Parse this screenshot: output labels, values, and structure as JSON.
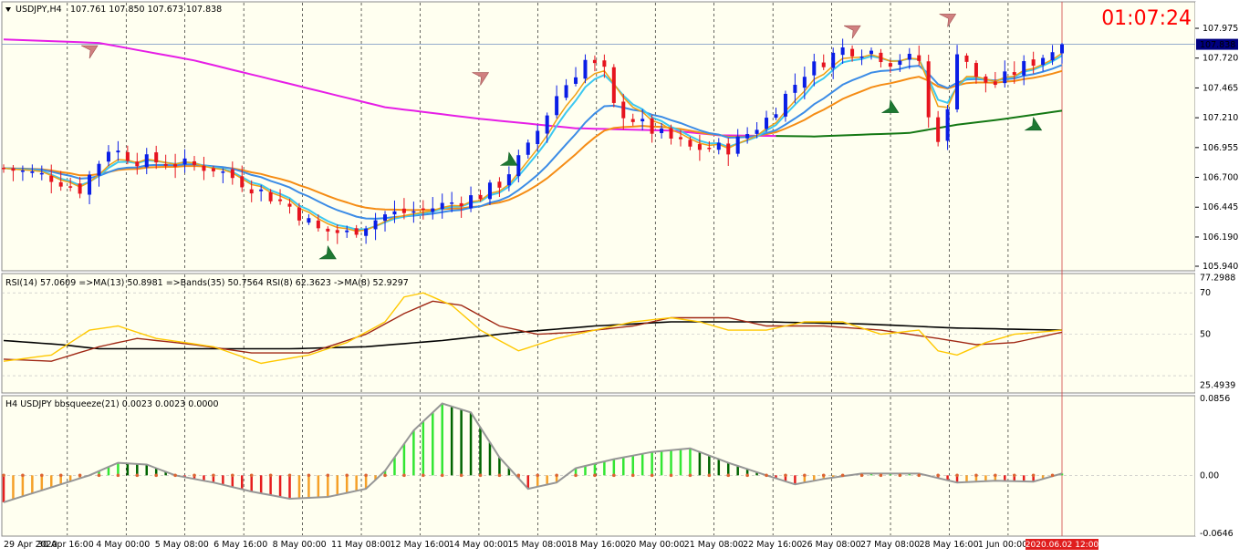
{
  "chart_data": [
    {
      "type": "candlestick",
      "panel": "main",
      "symbol_label": "USDJPY,H4",
      "ohlc_text": "107.761 107.850 107.673 107.838",
      "countdown": "01:07:24",
      "last_price": "107.838",
      "ylim": [
        105.94,
        108.1
      ],
      "y_ticks": [
        "107.975",
        "107.720",
        "107.465",
        "107.210",
        "106.955",
        "106.700",
        "106.445",
        "106.190",
        "105.940"
      ],
      "colors": {
        "bull": "#0a1ee6",
        "bear": "#e6141e",
        "ma_magenta": "#e61ee6",
        "ma_green": "#147814",
        "ma_orange": "#f58c14",
        "ma_cyan": "#3cc8f0",
        "ma_blue": "#3c8ce6",
        "ma_orange2": "#f0a014"
      },
      "arrows": [
        {
          "type": "sell",
          "label": "down-arrow"
        },
        {
          "type": "sell",
          "label": "down-arrow"
        },
        {
          "type": "buy",
          "label": "up-arrow"
        },
        {
          "type": "buy",
          "label": "up-arrow"
        },
        {
          "type": "sell",
          "label": "down-arrow"
        },
        {
          "type": "buy",
          "label": "up-arrow"
        },
        {
          "type": "sell",
          "label": "down-arrow"
        },
        {
          "type": "buy",
          "label": "up-arrow"
        }
      ]
    },
    {
      "type": "line",
      "panel": "rsi",
      "label": "RSI(14) 57.0609 =>MA(13) 50.8981 =>Bands(35) 50.7564 RSI(8) 62.3623 ->MA(8) 52.9297",
      "ylim": [
        23,
        78
      ],
      "y_ticks": [
        "77.2988",
        "70",
        "50",
        "25.4939"
      ],
      "levels": [
        70,
        50,
        30
      ],
      "series": [
        {
          "name": "RSI(8)",
          "color": "#ffc800"
        },
        {
          "name": "MA(13)",
          "color": "#a02814"
        },
        {
          "name": "Bands(35)",
          "color": "#000000"
        }
      ]
    },
    {
      "type": "histogram",
      "panel": "bbsqueeze",
      "label": "H4 USDJPY bbsqueeze(21) 0.0023 0.0023 0.0000",
      "ylim": [
        -0.0646,
        0.0856
      ],
      "y_ticks": [
        "0.0856",
        "0.00",
        "-0.0646"
      ],
      "colors": {
        "pos_strong": "#006400",
        "pos_weak": "#32e632",
        "neg_strong": "#e61e1e",
        "neg_weak": "#f5a028",
        "line": "#969696",
        "dot": "#dc6432"
      }
    }
  ],
  "time_axis": {
    "labels": [
      "29 Apr 2020",
      "30 Apr 16:00",
      "4 May 00:00",
      "5 May 08:00",
      "6 May 16:00",
      "8 May 00:00",
      "11 May 08:00",
      "12 May 16:00",
      "14 May 00:00",
      "15 May 08:00",
      "18 May 16:00",
      "20 May 00:00",
      "21 May 08:00",
      "22 May 16:00",
      "26 May 08:00",
      "27 May 08:00",
      "28 May 16:00",
      "1 Jun 00:00"
    ],
    "current_label": "2020.06.02 12:00"
  }
}
